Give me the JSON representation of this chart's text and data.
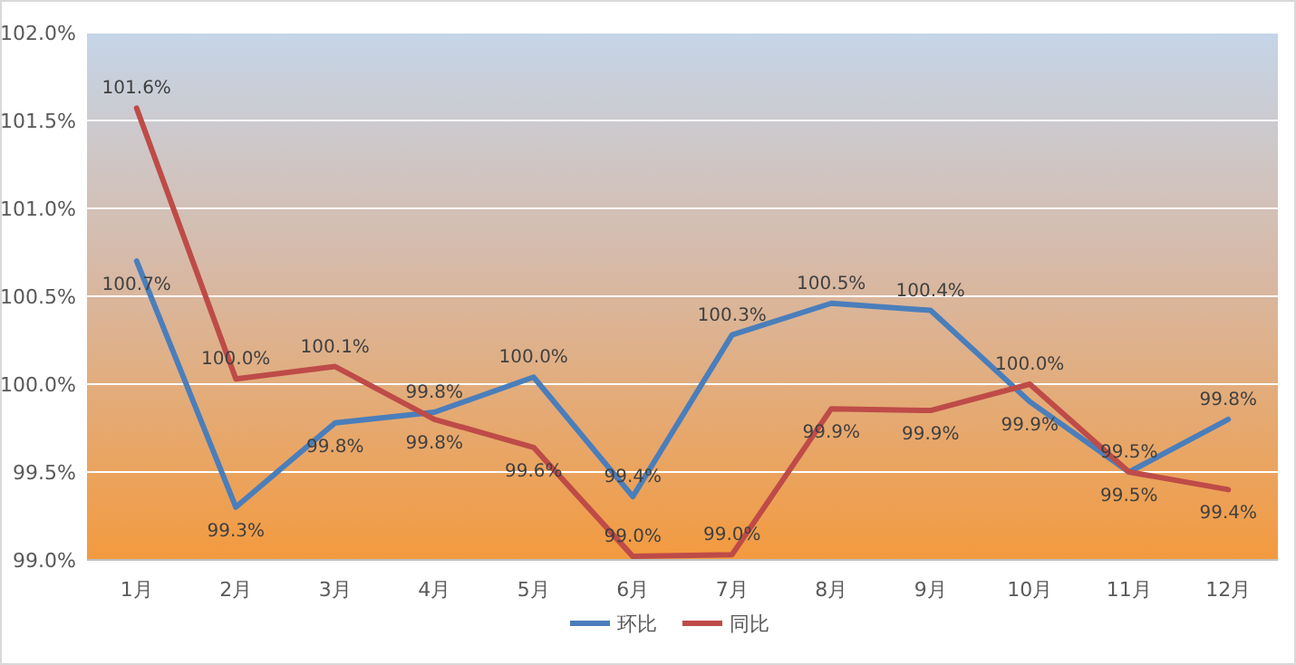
{
  "chart_data": {
    "type": "line",
    "categories": [
      "1月",
      "2月",
      "3月",
      "4月",
      "5月",
      "6月",
      "7月",
      "8月",
      "9月",
      "10月",
      "11月",
      "12月"
    ],
    "series": [
      {
        "name": "环比",
        "color": "#4a7ebb",
        "values": [
          100.7,
          99.3,
          99.78,
          99.84,
          100.04,
          99.36,
          100.28,
          100.46,
          100.42,
          99.9,
          99.5,
          99.8
        ],
        "value_labels": [
          "100.7%",
          "99.3%",
          "99.8%",
          "99.8%",
          "100.0%",
          "99.4%",
          "100.3%",
          "100.5%",
          "100.4%",
          "99.9%",
          "99.5%",
          "99.8%"
        ]
      },
      {
        "name": "同比",
        "color": "#be4b48",
        "values": [
          101.57,
          100.03,
          100.1,
          99.8,
          99.64,
          99.02,
          99.03,
          99.86,
          99.85,
          100.0,
          99.5,
          99.4
        ],
        "value_labels": [
          "101.6%",
          "100.0%",
          "100.1%",
          "99.8%",
          "99.6%",
          "99.0%",
          "99.0%",
          "99.9%",
          "99.9%",
          "100.0%",
          "99.5%",
          "99.4%"
        ]
      }
    ],
    "ylim": [
      99.0,
      102.0
    ],
    "yticks": [
      {
        "value": 99.0,
        "label": "99.0%"
      },
      {
        "value": 99.5,
        "label": "99.5%"
      },
      {
        "value": 100.0,
        "label": "100.0%"
      },
      {
        "value": 100.5,
        "label": "100.5%"
      },
      {
        "value": 101.0,
        "label": "101.0%"
      },
      {
        "value": 101.5,
        "label": "101.5%"
      },
      {
        "value": 102.0,
        "label": "102.0%"
      }
    ],
    "grid": "y",
    "legend": "bottom",
    "marker": "none",
    "line_style": "solid"
  }
}
